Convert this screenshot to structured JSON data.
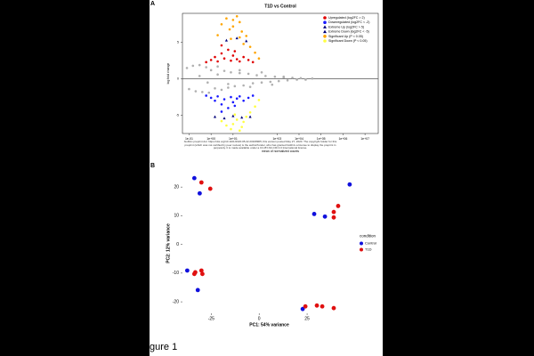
{
  "panel_labels": [
    "A",
    "B"
  ],
  "figure_label": "gure 1",
  "caption": "bioRxiv preprint doi: https://doi.org/10.1101/2020.05.22.20108905; this version posted May 27, 2020. The copyright holder for this preprint (which was not certified by peer review) is the author/funder, who has granted bioRxiv a license to display the preprint in perpetuity. It is made available under a CC-BY-NC-ND 4.0 International license.",
  "chart_data": [
    {
      "type": "scatter",
      "title": "T1D vs Control",
      "x_label": "mean of normalized counts",
      "y_label": "log fold change",
      "xlog": true,
      "xlim": [
        0.05,
        40000000
      ],
      "ylim": [
        -7.5,
        9
      ],
      "xticks": [
        {
          "value": 0.1,
          "label": "1e-01"
        },
        {
          "value": 1,
          "label": "1e+00"
        },
        {
          "value": 10,
          "label": "1e+01"
        },
        {
          "value": 1000,
          "label": "1e+03"
        },
        {
          "value": 10000,
          "label": "1e+04"
        },
        {
          "value": 100000,
          "label": "1e+05"
        },
        {
          "value": 1000000,
          "label": "1e+06"
        },
        {
          "value": 10000000,
          "label": "1e+07"
        }
      ],
      "yticks": [
        -5,
        0,
        5
      ],
      "legend": "top-right",
      "series": [
        {
          "color": "#b0b0b0",
          "marker": "circle",
          "x": [
            0.08,
            0.1,
            0.15,
            0.2,
            0.3,
            0.4,
            0.6,
            0.8,
            1,
            1.5,
            2,
            3,
            4,
            6,
            8,
            12,
            20,
            30,
            50,
            80,
            120,
            200,
            300,
            500,
            800,
            1200,
            2000,
            3000,
            5000,
            8000,
            12000,
            20000,
            40000,
            0.3,
            0.7,
            2,
            6,
            20,
            60,
            200,
            600,
            2000
          ],
          "values": [
            1.5,
            -1.4,
            1.8,
            -1.7,
            1.9,
            -1.8,
            1.6,
            -1.9,
            1.2,
            -1.3,
            1.7,
            -1.5,
            1.1,
            -1.2,
            0.9,
            -1,
            0.8,
            -0.9,
            0.7,
            -0.6,
            0.5,
            -0.5,
            0.4,
            -0.4,
            0.3,
            -0.3,
            0.2,
            -0.2,
            0.15,
            -0.1,
            0.1,
            -0.1,
            0.05,
            0.4,
            -0.5,
            0.6,
            -0.7,
            1.2,
            -1.1,
            0.9,
            -0.8,
            0.3
          ]
        },
        {
          "name": "Upregulated (log2FC > 2)",
          "color": "#e00000",
          "marker": "circle",
          "x": [
            0.6,
            1,
            1.5,
            2,
            3,
            4,
            6,
            8,
            10,
            15,
            20,
            30,
            50,
            80,
            3,
            12
          ],
          "values": [
            2.3,
            2.6,
            3,
            2.4,
            3.5,
            2.8,
            4,
            2.5,
            3.2,
            2.7,
            2.4,
            3,
            2.6,
            2.3,
            4.6,
            3.8
          ]
        },
        {
          "name": "Downregulated (log2FC < -2)",
          "color": "#1a1aff",
          "marker": "circle",
          "x": [
            0.6,
            1,
            1.5,
            2,
            3,
            4,
            6,
            8,
            10,
            15,
            20,
            30,
            50,
            80,
            3,
            12
          ],
          "values": [
            -2.3,
            -2.6,
            -3,
            -2.4,
            -3.5,
            -2.8,
            -4,
            -2.5,
            -3.2,
            -2.7,
            -2.4,
            -3,
            -2.6,
            -2.3,
            -4.5,
            -3.7
          ]
        },
        {
          "name": "Extreme Up (log2FC > 5)",
          "color": "#00007a",
          "marker": "triangle",
          "x": [
            5,
            15,
            40
          ],
          "values": [
            5.3,
            5.6,
            5.2
          ]
        },
        {
          "name": "Extreme Down (log2FC < -5)",
          "color": "#00007a",
          "marker": "triangle",
          "x": [
            1.5,
            4,
            10,
            25,
            60
          ],
          "values": [
            -5.2,
            -5.4,
            -5.1,
            -5.3,
            -5.2
          ]
        },
        {
          "name": "Significant Up (P < 0.05)",
          "color": "#ffa500",
          "marker": "circle",
          "x": [
            2,
            3,
            5,
            7,
            10,
            15,
            20,
            25,
            30,
            40,
            60,
            100,
            150,
            20,
            10,
            8
          ],
          "values": [
            6,
            7.5,
            8.3,
            6.8,
            7.2,
            8.6,
            5.7,
            6.5,
            4.8,
            5.9,
            4.4,
            3.6,
            2.8,
            7.8,
            8.1,
            5.5
          ]
        },
        {
          "name": "Significant Down (P < 0.05)",
          "color": "#ffff40",
          "marker": "circle",
          "x": [
            3,
            5,
            8,
            10,
            15,
            20,
            30,
            40,
            60,
            100,
            150,
            25,
            12
          ],
          "values": [
            -5.8,
            -6.4,
            -6.9,
            -6.2,
            -5.6,
            -7.1,
            -5.9,
            -5.2,
            -4.6,
            -3.8,
            -2.9,
            -6.6,
            -4.9
          ]
        }
      ]
    },
    {
      "type": "scatter",
      "x_label": "PC1: 54% variance",
      "y_label": "PC2: 12% variance",
      "xlim": [
        -40,
        50.5
      ],
      "ylim": [
        -24,
        24.7
      ],
      "xticks": [
        -25,
        0,
        25
      ],
      "yticks": [
        -20,
        -10,
        0,
        10,
        20
      ],
      "legend": "right",
      "legend_title": "condition",
      "series": [
        {
          "name": "Control",
          "color": "#1010dd",
          "marker": "circle",
          "x": [
            -33.8,
            -31,
            -37.5,
            -32,
            28.7,
            34.3,
            47.2,
            22.7
          ],
          "values": [
            23.1,
            17.8,
            -9.1,
            -15.9,
            10.6,
            9.7,
            20.9,
            -22.5
          ]
        },
        {
          "name": "T1D",
          "color": "#e01010",
          "marker": "circle",
          "x": [
            -30.1,
            -25.5,
            -33.3,
            -30.1,
            -29.6,
            -33.8,
            38.9,
            38.9,
            41.2,
            30.1,
            32.9,
            38.9,
            24.1
          ],
          "values": [
            21.6,
            19.4,
            -9.7,
            -9.1,
            -10.3,
            -10.3,
            11.3,
            9.4,
            13.4,
            -21.3,
            -21.6,
            -22.2,
            -21.6
          ]
        }
      ]
    }
  ]
}
